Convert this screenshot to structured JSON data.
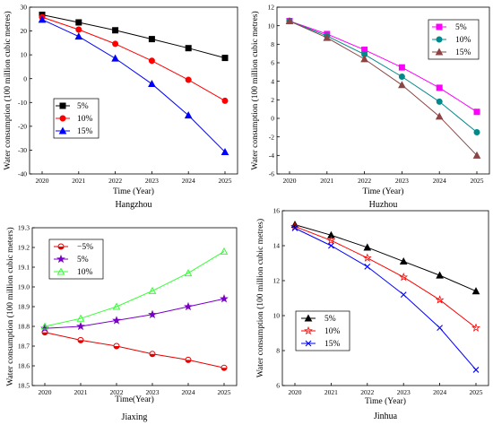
{
  "chart_data": [
    {
      "type": "line",
      "caption": "Hangzhou",
      "xlabel": "Time (Year)",
      "ylabel": "Water consumption (100 million cubic metres)",
      "x": [
        2020,
        2021,
        2022,
        2023,
        2024,
        2025
      ],
      "ylim": [
        -40,
        30
      ],
      "yticks": [
        -40,
        -30,
        -20,
        -10,
        0,
        10,
        20,
        30
      ],
      "legend_position": "lower-left",
      "series": [
        {
          "name": "5%",
          "color": "#000000",
          "marker": "square",
          "values": [
            26.8,
            23.6,
            20.3,
            16.6,
            12.8,
            8.7
          ]
        },
        {
          "name": "10%",
          "color": "#ff0000",
          "marker": "circle",
          "values": [
            25.8,
            20.6,
            14.6,
            7.5,
            -0.5,
            -9.3
          ]
        },
        {
          "name": "15%",
          "color": "#0000ff",
          "marker": "triangle-up",
          "values": [
            24.8,
            17.7,
            8.5,
            -2.2,
            -15.4,
            -30.8
          ]
        }
      ]
    },
    {
      "type": "line",
      "caption": "Huzhou",
      "xlabel": "Time (Year)",
      "ylabel": "Water consumption (100 million cubic metres)",
      "x": [
        2020,
        2021,
        2022,
        2023,
        2024,
        2025
      ],
      "ylim": [
        -6,
        12
      ],
      "yticks": [
        -6,
        -4,
        -2,
        0,
        2,
        4,
        6,
        8,
        10,
        12
      ],
      "legend_position": "top-right",
      "series": [
        {
          "name": "5%",
          "color": "#ff00ff",
          "marker": "square",
          "values": [
            10.5,
            9.1,
            7.4,
            5.5,
            3.3,
            0.7
          ]
        },
        {
          "name": "10%",
          "color": "#008b8b",
          "marker": "circle",
          "values": [
            10.5,
            8.9,
            6.9,
            4.5,
            1.8,
            -1.5
          ]
        },
        {
          "name": "15%",
          "color": "#8b4545",
          "marker": "triangle-up",
          "values": [
            10.5,
            8.7,
            6.4,
            3.6,
            0.2,
            -4.0
          ]
        }
      ]
    },
    {
      "type": "line",
      "caption": "Jiaxing",
      "xlabel": "Time(Year)",
      "ylabel": "Water consumption (100 million cubic meters)",
      "x": [
        2020,
        2021,
        2022,
        2023,
        2024,
        2025
      ],
      "ylim": [
        18.5,
        19.3
      ],
      "yticks": [
        "18.5",
        "18.6",
        "18.7",
        "18.8",
        "18.9",
        "19.0",
        "19.1",
        "19.2",
        "19.3"
      ],
      "legend_position": "top-left",
      "series": [
        {
          "name": "−5%",
          "color": "#e60000",
          "marker": "half-circle",
          "values": [
            18.77,
            18.73,
            18.7,
            18.66,
            18.63,
            18.59
          ]
        },
        {
          "name": "5%",
          "color": "#7a00c8",
          "marker": "star",
          "values": [
            18.79,
            18.8,
            18.83,
            18.86,
            18.9,
            18.94
          ]
        },
        {
          "name": "10%",
          "color": "#33ff33",
          "marker": "triangle-up-open",
          "values": [
            18.8,
            18.84,
            18.9,
            18.98,
            19.07,
            19.18
          ]
        }
      ]
    },
    {
      "type": "line",
      "caption": "Jinhua",
      "xlabel": "Time (Year)",
      "ylabel": "Water consumption (100 million cubic metres)",
      "x": [
        2020,
        2021,
        2022,
        2023,
        2024,
        2025
      ],
      "ylim": [
        6,
        16
      ],
      "yticks": [
        6,
        8,
        10,
        12,
        14,
        16
      ],
      "legend_position": "lower-left",
      "series": [
        {
          "name": "5%",
          "color": "#000000",
          "marker": "triangle-up",
          "values": [
            15.2,
            14.6,
            13.9,
            13.1,
            12.3,
            11.4
          ]
        },
        {
          "name": "10%",
          "color": "#ff0000",
          "marker": "star-open",
          "values": [
            15.1,
            14.3,
            13.3,
            12.2,
            10.9,
            9.3
          ]
        },
        {
          "name": "15%",
          "color": "#0000ff",
          "marker": "x",
          "values": [
            15.0,
            14.0,
            12.8,
            11.2,
            9.3,
            6.9
          ]
        }
      ]
    }
  ]
}
